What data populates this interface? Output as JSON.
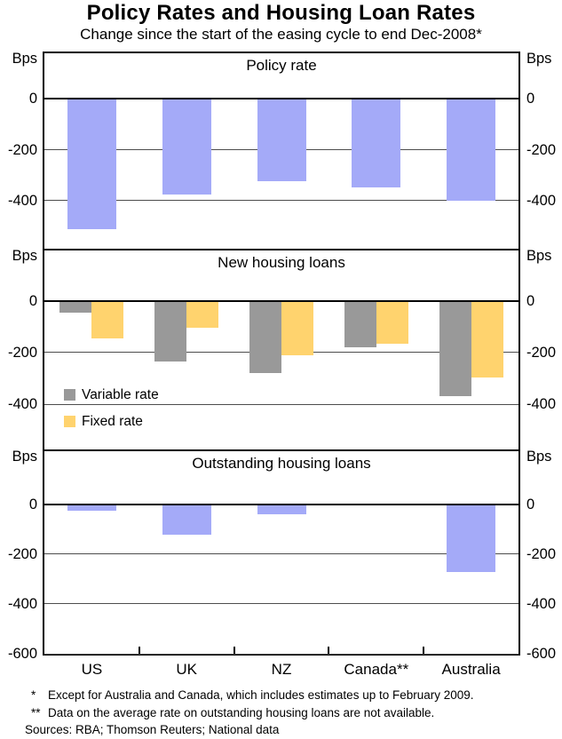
{
  "title": "Policy Rates and Housing Loan Rates",
  "subtitle": "Change since the start of the easing cycle to end Dec-2008*",
  "categories": [
    "US",
    "UK",
    "NZ",
    "Canada**",
    "Australia"
  ],
  "colors": {
    "policy_bar": "#a4aaf8",
    "variable_bar": "#999999",
    "fixed_bar": "#ffd36e",
    "gridline": "#4d4d4d",
    "axis": "#000000"
  },
  "chart_data": [
    {
      "type": "bar",
      "title": "Policy rate",
      "categories": [
        "US",
        "UK",
        "NZ",
        "Canada**",
        "Australia"
      ],
      "series": [
        {
          "name": "Policy rate",
          "color": "#a4aaf8",
          "values": [
            -512.5,
            -375,
            -325,
            -350,
            -400
          ]
        }
      ],
      "ylabel": "Bps",
      "ylim": [
        -590,
        180
      ],
      "yticks": [
        0,
        -200,
        -400
      ],
      "grid": true
    },
    {
      "type": "bar",
      "title": "New housing loans",
      "categories": [
        "US",
        "UK",
        "NZ",
        "Canada**",
        "Australia"
      ],
      "series": [
        {
          "name": "Variable rate",
          "color": "#999999",
          "values": [
            -45,
            -235,
            -280,
            -180,
            -370
          ]
        },
        {
          "name": "Fixed rate",
          "color": "#ffd36e",
          "values": [
            -145,
            -105,
            -210,
            -165,
            -295
          ]
        }
      ],
      "ylabel": "Bps",
      "ylim": [
        -575,
        195
      ],
      "yticks": [
        0,
        -200,
        -400
      ],
      "grid": true,
      "legend_position": "lower-left"
    },
    {
      "type": "bar",
      "title": "Outstanding housing loans",
      "categories": [
        "US",
        "UK",
        "NZ",
        "Canada**",
        "Australia"
      ],
      "series": [
        {
          "name": "Outstanding housing loans",
          "color": "#a4aaf8",
          "values": [
            -25,
            -120,
            -40,
            null,
            -270
          ]
        }
      ],
      "ylabel": "Bps",
      "ylim": [
        -600,
        214
      ],
      "yticks": [
        0,
        -200,
        -400,
        -600
      ],
      "grid": true
    }
  ],
  "footnotes": [
    {
      "marker": "*",
      "text": "Except for Australia and Canada, which includes estimates up to February 2009."
    },
    {
      "marker": "**",
      "text": "Data on the average rate on outstanding housing loans are not available."
    }
  ],
  "source_line": "Sources: RBA; Thomson Reuters; National data"
}
